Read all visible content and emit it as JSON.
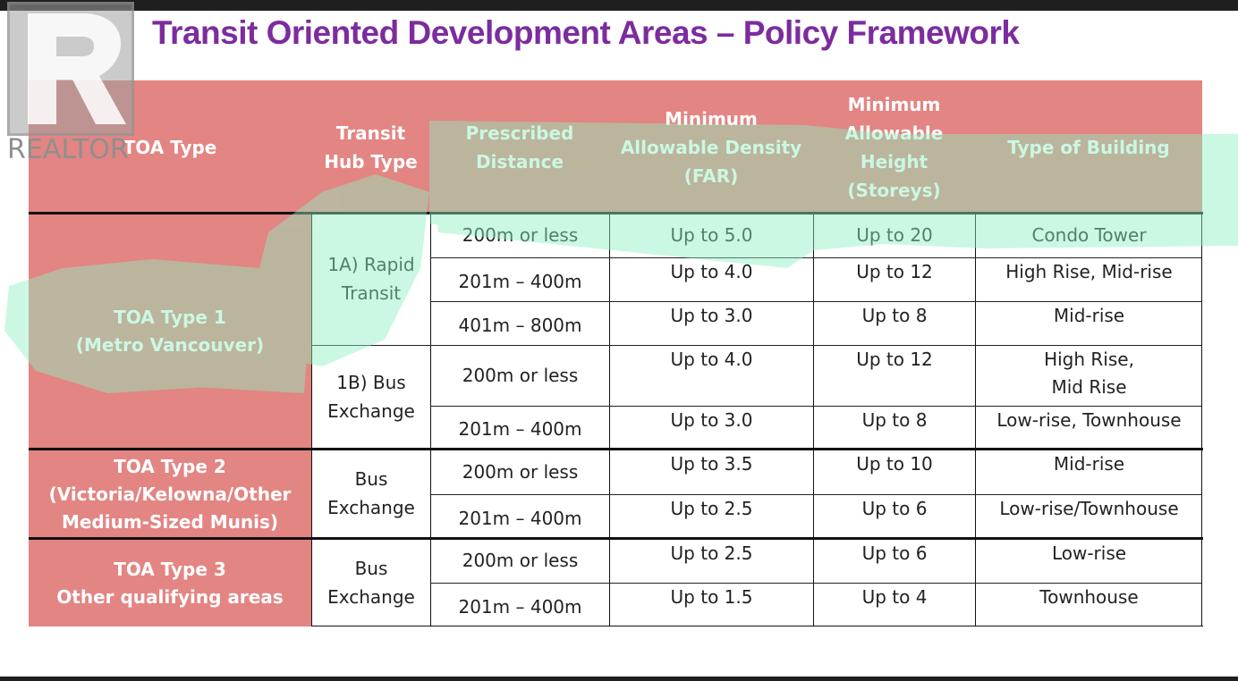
{
  "title": "Transit Oriented Development Areas – Policy Framework",
  "logo": {
    "text": "REALTOR"
  },
  "headers": {
    "toa_type": "TOA Type",
    "hub_type": "Transit\nHub Type",
    "distance": "Prescribed\nDistance",
    "density": "Minimum\nAllowable Density\n(FAR)",
    "height": "Minimum\nAllowable\nHeight\n(Storeys)",
    "building": "Type of Building"
  },
  "groups": [
    {
      "label": "TOA Type 1\n(Metro Vancouver)"
    },
    {
      "label": "TOA Type 2\n(Victoria/Kelowna/Other\nMedium-Sized Munis)"
    },
    {
      "label": "TOA Type 3\nOther qualifying areas"
    }
  ],
  "hubs": [
    {
      "label": "1A) Rapid\nTransit"
    },
    {
      "label": "1B) Bus\nExchange"
    },
    {
      "label": "Bus\nExchange"
    },
    {
      "label": "Bus\nExchange"
    }
  ],
  "rows": [
    {
      "distance": "200m or less",
      "density": "Up to 5.0",
      "height": "Up to 20",
      "building": "Condo Tower"
    },
    {
      "distance": "201m – 400m",
      "density": "Up to 4.0",
      "height": "Up to 12",
      "building": "High Rise, Mid-rise"
    },
    {
      "distance": "401m – 800m",
      "density": "Up to 3.0",
      "height": "Up to 8",
      "building": "Mid-rise"
    },
    {
      "distance": "200m or less",
      "density": "Up to 4.0",
      "height": "Up to 12",
      "building": "High Rise,\nMid Rise"
    },
    {
      "distance": "201m – 400m",
      "density": "Up to 3.0",
      "height": "Up to 8",
      "building": "Low-rise, Townhouse"
    },
    {
      "distance": "200m or less",
      "density": "Up to 3.5",
      "height": "Up to 10",
      "building": "Mid-rise"
    },
    {
      "distance": "201m – 400m",
      "density": "Up to 2.5",
      "height": "Up to 6",
      "building": "Low-rise/Townhouse"
    },
    {
      "distance": "200m or less",
      "density": "Up to 2.5",
      "height": "Up to 6",
      "building": "Low-rise"
    },
    {
      "distance": "201m – 400m",
      "density": "Up to 1.5",
      "height": "Up to 4",
      "building": "Townhouse"
    }
  ],
  "colors": {
    "title": "#7c2c9e",
    "header_bg": "#e28583",
    "highlight": "#8ef0c0"
  }
}
